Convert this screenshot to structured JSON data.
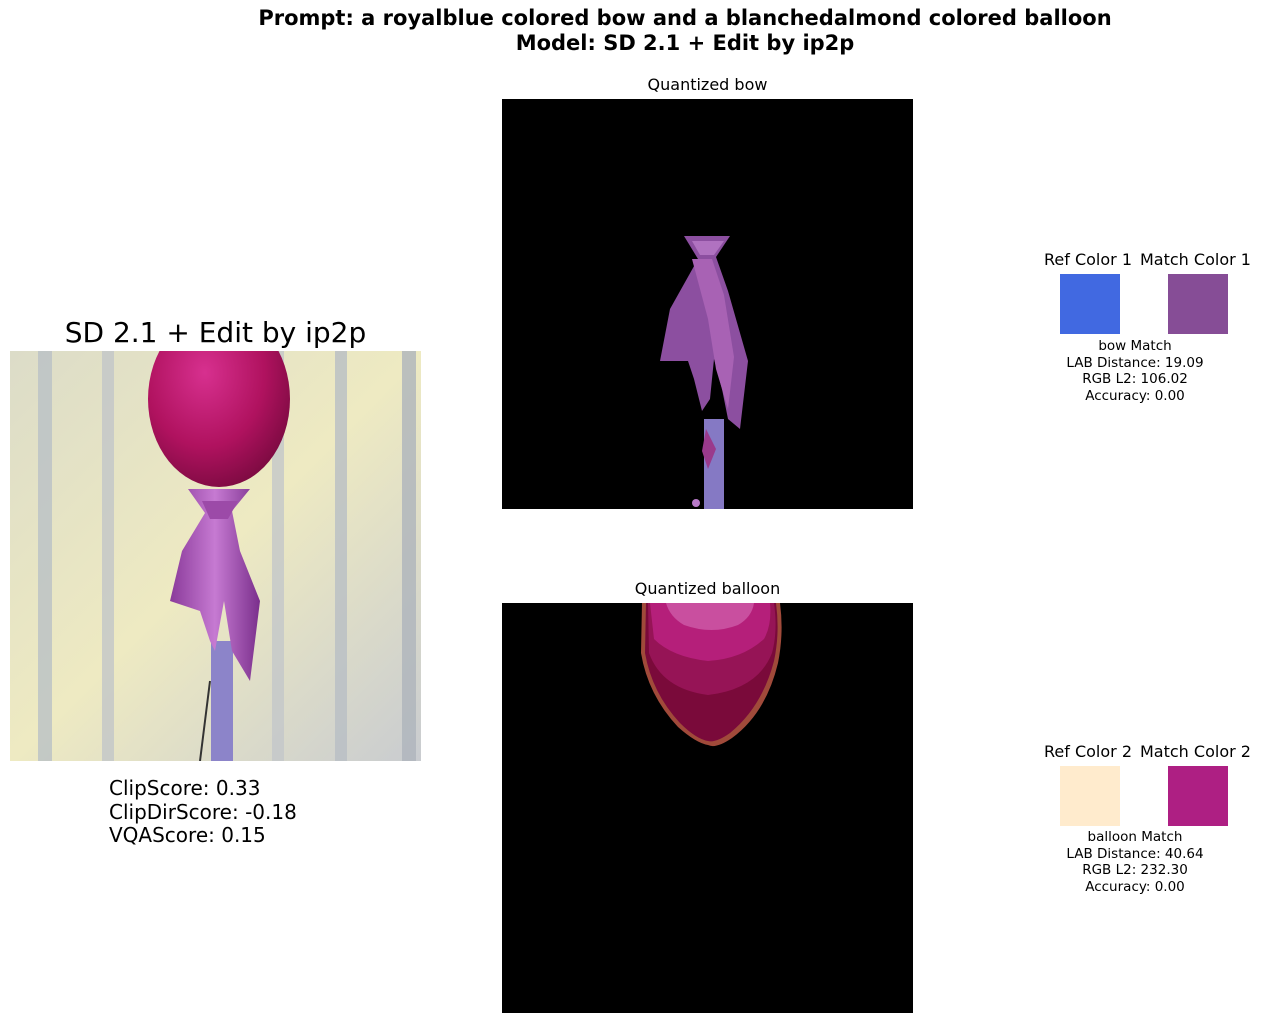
{
  "header": {
    "prompt_line": "Prompt: a royalblue colored bow and a blanchedalmond colored balloon",
    "model_line": "Model: SD 2.1 + Edit by ip2p"
  },
  "main_image": {
    "title": "SD 2.1 + Edit by ip2p",
    "metrics": [
      "ClipScore: 0.33",
      "ClipDirScore: -0.18",
      "VQAScore: 0.15"
    ]
  },
  "quantized": [
    {
      "title": "Quantized bow"
    },
    {
      "title": "Quantized balloon"
    }
  ],
  "colors": [
    {
      "ref_label": "Ref Color 1",
      "match_label": "Match Color 1",
      "ref_color": "#4169e1",
      "match_color": "#864d96",
      "info": [
        "bow Match",
        "LAB Distance: 19.09",
        "RGB L2: 106.02",
        "Accuracy: 0.00"
      ]
    },
    {
      "ref_label": "Ref Color 2",
      "match_label": "Match Color 2",
      "ref_color": "#ffebcd",
      "match_color": "#ae1f83",
      "info": [
        "balloon Match",
        "LAB Distance: 40.64",
        "RGB L2: 232.30",
        "Accuracy: 0.00"
      ]
    }
  ]
}
